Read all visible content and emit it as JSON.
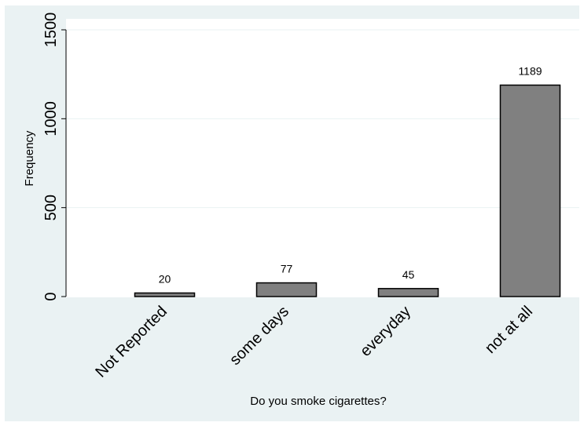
{
  "chart_data": {
    "type": "bar",
    "categories": [
      "Not Reported",
      "some days",
      "everyday",
      "not at all"
    ],
    "values": [
      20,
      77,
      45,
      1189
    ],
    "data_labels": [
      "20",
      "77",
      "45",
      "1189"
    ],
    "title": "",
    "xlabel": "Do you smoke cigarettes?",
    "ylabel": "Frequency",
    "ylim": [
      0,
      1500
    ],
    "yticks": [
      0,
      500,
      1000,
      1500
    ],
    "ytick_labels": [
      "0",
      "500",
      "1000",
      "1500"
    ],
    "grid": true,
    "colors": {
      "bar_fill": "#808080",
      "bar_stroke": "#000000",
      "outer_background": "#eaf2f3",
      "plot_background": "#ffffff",
      "grid": "#eaf2f3"
    }
  }
}
